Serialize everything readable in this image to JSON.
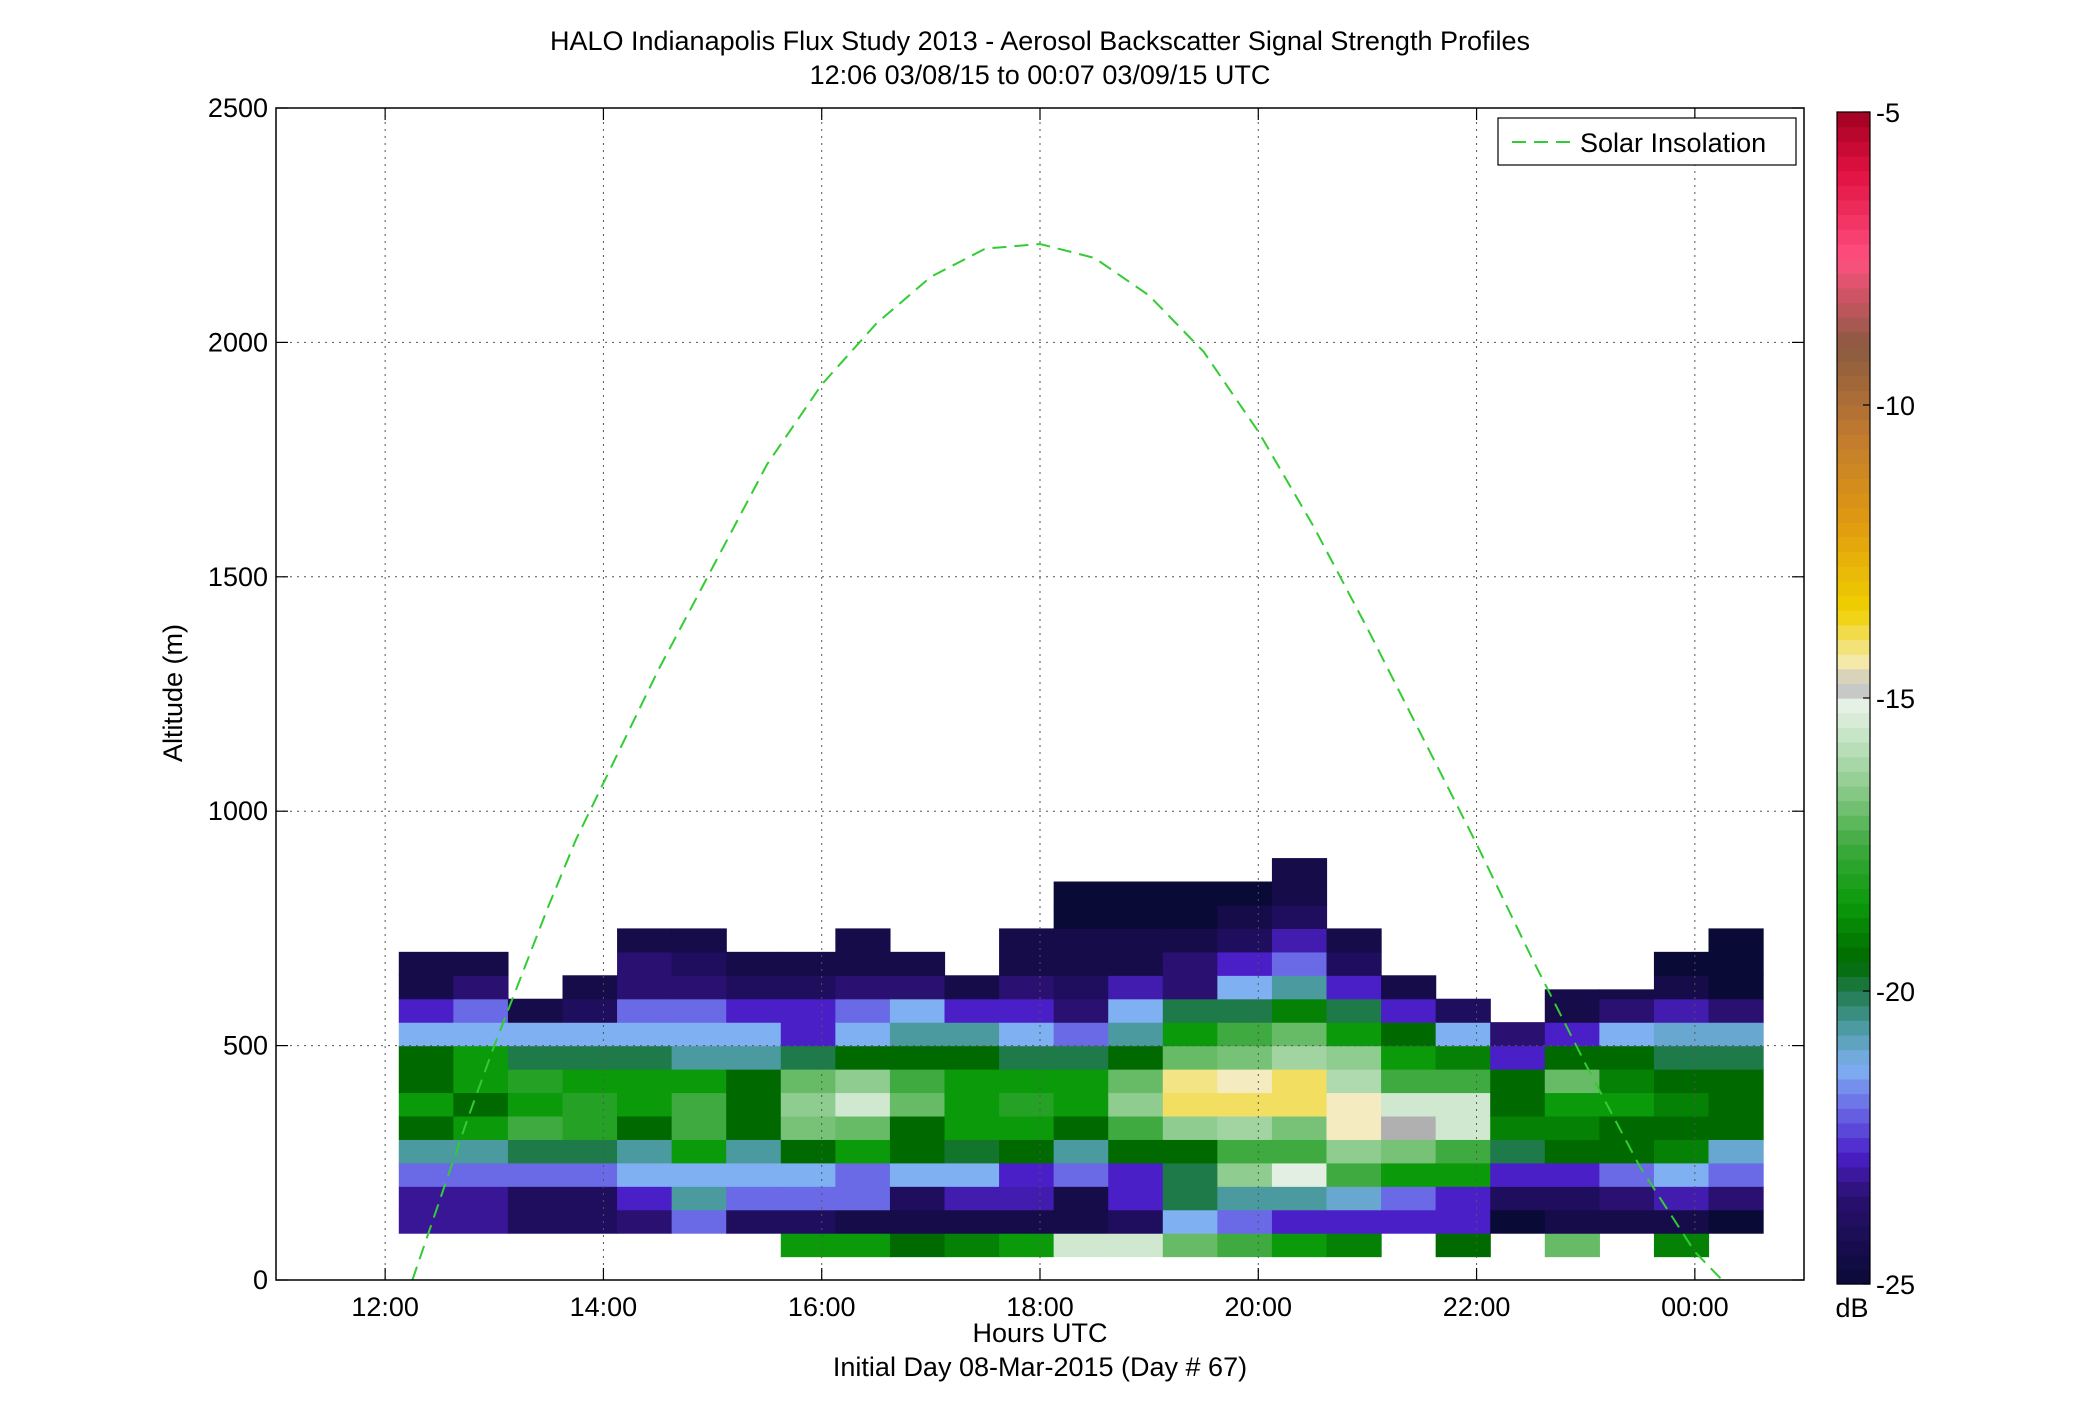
{
  "chart_data": {
    "type": "heatmap",
    "title": "HALO Indianapolis Flux Study 2013 - Aerosol Backscatter Signal Strength Profiles",
    "subtitle": "12:06 03/08/15 to 00:07 03/09/15  UTC",
    "xlabel": "Hours UTC",
    "xlabel2": "Initial Day 08-Mar-2015 (Day # 67)",
    "ylabel": "Altitude (m)",
    "xlim": [
      11.0,
      25.0
    ],
    "ylim": [
      0,
      2500
    ],
    "x_ticks": [
      12,
      14,
      16,
      18,
      20,
      22,
      24
    ],
    "x_tick_labels": [
      "12:00",
      "14:00",
      "16:00",
      "18:00",
      "20:00",
      "22:00",
      "00:00"
    ],
    "y_ticks": [
      0,
      500,
      1000,
      1500,
      2000,
      2500
    ],
    "y_tick_labels": [
      "0",
      "500",
      "1000",
      "1500",
      "2000",
      "2500"
    ],
    "grid": true,
    "legend": {
      "position": "top-right",
      "entries": [
        "Solar Insolation"
      ]
    },
    "colorbar": {
      "unit": "dB",
      "min": -25,
      "max": -5,
      "ticks": [
        -25,
        -20,
        -15,
        -10,
        -5
      ],
      "tick_labels": [
        "-25",
        "-20",
        "-15",
        "-10",
        "-5"
      ],
      "colors": [
        {
          "v": -25.0,
          "c": "#0a0a36"
        },
        {
          "v": -23.5,
          "c": "#2a1070"
        },
        {
          "v": -22.8,
          "c": "#4b1fc8"
        },
        {
          "v": -22.0,
          "c": "#6a6ae6"
        },
        {
          "v": -21.3,
          "c": "#7fb0f2"
        },
        {
          "v": -20.6,
          "c": "#4a9aa0"
        },
        {
          "v": -20.0,
          "c": "#1f7a4a"
        },
        {
          "v": -19.5,
          "c": "#006a00"
        },
        {
          "v": -18.5,
          "c": "#0a9a0a"
        },
        {
          "v": -17.5,
          "c": "#3faa3f"
        },
        {
          "v": -16.5,
          "c": "#8fcc8f"
        },
        {
          "v": -15.5,
          "c": "#cfe8cf"
        },
        {
          "v": -15.0,
          "c": "#eef4ee"
        },
        {
          "v": -14.8,
          "c": "#b0b0b0"
        },
        {
          "v": -14.5,
          "c": "#f4ecc0"
        },
        {
          "v": -13.5,
          "c": "#f0d000"
        },
        {
          "v": -12.0,
          "c": "#e09a10"
        },
        {
          "v": -10.5,
          "c": "#c07a30"
        },
        {
          "v": -9.0,
          "c": "#8a5a40"
        },
        {
          "v": -7.5,
          "c": "#ff5080"
        },
        {
          "v": -6.0,
          "c": "#e01040"
        },
        {
          "v": -5.0,
          "c": "#a00020"
        }
      ]
    },
    "cells": {
      "columns": [
        {
          "x0": 12.125,
          "x1": 12.625,
          "y_top": 720,
          "values": [
            null,
            -23.2,
            -23.2,
            -22.0,
            -20.6,
            -19.5,
            -18.5,
            -19.5,
            -19.5,
            -21.3,
            -22.8,
            -24.5,
            -24.5
          ]
        },
        {
          "x0": 12.625,
          "x1": 13.125,
          "y_top": 720,
          "values": [
            null,
            -23.2,
            -23.2,
            -22.0,
            -20.6,
            -18.5,
            -19.5,
            -18.5,
            -18.5,
            -21.3,
            -22.0,
            -23.5,
            -24.5
          ]
        },
        {
          "x0": 13.125,
          "x1": 13.625,
          "y_top": 670,
          "values": [
            null,
            -24.0,
            -24.0,
            -22.0,
            -20.0,
            -17.5,
            -18.5,
            -18.0,
            -20.0,
            -21.3,
            -24.5
          ]
        },
        {
          "x0": 13.625,
          "x1": 14.125,
          "y_top": 720,
          "values": [
            null,
            -24.0,
            -24.0,
            -22.0,
            -20.0,
            -18.0,
            -18.0,
            -18.5,
            -20.0,
            -21.3,
            -24.0,
            -24.5
          ]
        },
        {
          "x0": 14.125,
          "x1": 14.625,
          "y_top": 770,
          "values": [
            null,
            -23.5,
            -22.8,
            -21.3,
            -20.6,
            -19.5,
            -18.5,
            -18.5,
            -20.0,
            -21.3,
            -22.0,
            -23.5,
            -23.5,
            -24.5
          ]
        },
        {
          "x0": 14.625,
          "x1": 15.125,
          "y_top": 770,
          "values": [
            null,
            -22.0,
            -20.6,
            -21.3,
            -18.5,
            -17.5,
            -17.5,
            -18.5,
            -20.6,
            -21.3,
            -22.0,
            -23.5,
            -24.0,
            -24.5
          ]
        },
        {
          "x0": 15.125,
          "x1": 15.625,
          "y_top": 720,
          "values": [
            null,
            -24.0,
            -22.0,
            -21.3,
            -20.6,
            -19.5,
            -19.5,
            -19.5,
            -20.6,
            -21.3,
            -22.8,
            -24.0,
            -24.5
          ]
        },
        {
          "x0": 15.625,
          "x1": 16.125,
          "y_top": 720,
          "values": [
            -18.5,
            -24.0,
            -22.0,
            -21.3,
            -19.5,
            -16.8,
            -16.5,
            -17.0,
            -20.0,
            -22.8,
            -22.8,
            -24.0,
            -24.5
          ]
        },
        {
          "x0": 16.125,
          "x1": 16.625,
          "y_top": 770,
          "values": [
            -18.5,
            -24.5,
            -22.0,
            -22.0,
            -18.5,
            -17.0,
            -15.5,
            -16.5,
            -19.5,
            -21.3,
            -22.0,
            -23.5,
            -24.5,
            -24.5
          ]
        },
        {
          "x0": 16.625,
          "x1": 17.125,
          "y_top": 770,
          "values": [
            -19.5,
            -24.5,
            -24.0,
            -21.3,
            -19.5,
            -19.5,
            -17.0,
            -17.5,
            -19.5,
            -20.6,
            -21.3,
            -23.5,
            -24.5
          ]
        },
        {
          "x0": 17.125,
          "x1": 17.625,
          "y_top": 720,
          "values": [
            -19.0,
            -24.5,
            -23.0,
            -21.3,
            -19.8,
            -18.5,
            -18.5,
            -18.5,
            -19.5,
            -20.6,
            -22.8,
            -24.5
          ]
        },
        {
          "x0": 17.625,
          "x1": 18.125,
          "y_top": 770,
          "values": [
            -18.5,
            -24.5,
            -23.0,
            -22.8,
            -19.5,
            -18.5,
            -18.0,
            -18.5,
            -20.0,
            -21.3,
            -22.8,
            -23.5,
            -24.5,
            -24.5
          ]
        },
        {
          "x0": 18.125,
          "x1": 18.625,
          "y_top": 870,
          "values": [
            -15.5,
            -24.5,
            -24.5,
            -22.0,
            -20.6,
            -19.5,
            -18.5,
            -18.5,
            -20.0,
            -22.0,
            -23.5,
            -24.0,
            -24.5,
            -24.5,
            -25.0,
            -25.0
          ]
        },
        {
          "x0": 18.625,
          "x1": 19.125,
          "y_top": 920,
          "values": [
            -15.5,
            -24.0,
            -22.8,
            -22.8,
            -19.5,
            -17.5,
            -16.5,
            -17.0,
            -19.5,
            -20.6,
            -21.3,
            -23.0,
            -24.5,
            -24.5,
            -25.0,
            -25.0
          ]
        },
        {
          "x0": 19.125,
          "x1": 19.625,
          "y_top": 870,
          "values": [
            -17.0,
            -21.3,
            -20.0,
            -20.0,
            -19.5,
            -16.5,
            -14.0,
            -14.2,
            -17.0,
            -18.5,
            -20.0,
            -23.5,
            -23.5,
            -24.5,
            -25.0,
            -25.0
          ]
        },
        {
          "x0": 19.625,
          "x1": 20.125,
          "y_top": 920,
          "values": [
            -17.5,
            -22.0,
            -20.6,
            -16.5,
            -17.5,
            -16.2,
            -14.0,
            -14.5,
            -16.8,
            -17.5,
            -20.0,
            -21.3,
            -22.8,
            -24.0,
            -24.5,
            -25.0
          ]
        },
        {
          "x0": 20.125,
          "x1": 20.625,
          "y_top": 970,
          "values": [
            -18.5,
            -22.8,
            -20.6,
            -15.2,
            -17.5,
            -16.8,
            -14.0,
            -14.0,
            -16.2,
            -17.0,
            -19.0,
            -20.6,
            -22.0,
            -23.0,
            -24.0,
            -24.5,
            -24.5
          ]
        },
        {
          "x0": 20.625,
          "x1": 21.125,
          "y_top": 870,
          "values": [
            -19.0,
            -22.8,
            -21.0,
            -17.5,
            -16.5,
            -14.5,
            -14.5,
            -16.0,
            -16.5,
            -18.5,
            -20.0,
            -22.8,
            -24.0,
            -24.5
          ]
        },
        {
          "x0": 21.125,
          "x1": 21.625,
          "y_top": 770,
          "values": [
            null,
            -22.8,
            -22.0,
            -18.5,
            -16.8,
            -14.8,
            -15.5,
            -17.5,
            -18.5,
            -19.5,
            -22.8,
            -24.5
          ]
        },
        {
          "x0": 21.625,
          "x1": 22.125,
          "y_top": 670,
          "values": [
            -19.5,
            -22.8,
            -22.8,
            -18.5,
            -17.5,
            -15.5,
            -15.5,
            -17.5,
            -19.0,
            -21.3,
            -24.0
          ]
        },
        {
          "x0": 22.125,
          "x1": 22.625,
          "y_top": 620,
          "values": [
            null,
            -25.0,
            -24.0,
            -22.8,
            -20.0,
            -19.0,
            -19.5,
            -19.5,
            -22.8,
            -23.5
          ]
        },
        {
          "x0": 22.625,
          "x1": 23.125,
          "y_top": 620,
          "values": [
            -17.0,
            -24.5,
            -24.0,
            -22.8,
            -19.5,
            -19.0,
            -18.5,
            -17.0,
            -19.5,
            -22.8,
            -24.5,
            -24.5
          ]
        },
        {
          "x0": 23.125,
          "x1": 23.625,
          "y_top": 620,
          "values": [
            null,
            -24.5,
            -23.5,
            -22.0,
            -19.5,
            -19.5,
            -18.5,
            -19.0,
            -19.5,
            -21.3,
            -23.5,
            -24.5
          ]
        },
        {
          "x0": 23.625,
          "x1": 24.125,
          "y_top": 720,
          "values": [
            -19.0,
            -24.5,
            -23.0,
            -21.3,
            -19.0,
            -19.5,
            -19.0,
            -19.5,
            -20.0,
            -21.0,
            -23.0,
            -24.5,
            -25.0
          ]
        },
        {
          "x0": 24.125,
          "x1": 24.625,
          "y_top": 820,
          "values": [
            null,
            -25.0,
            -23.5,
            -22.0,
            -21.0,
            -19.5,
            -19.5,
            -19.5,
            -20.0,
            -21.0,
            -23.5,
            -25.0,
            -25.0,
            -25.0
          ]
        }
      ],
      "y_bin_height": 50,
      "y_first_bin": 50
    },
    "series": [
      {
        "name": "Solar Insolation",
        "style": "dashed",
        "color": "#33cc33",
        "x": [
          12.25,
          12.5,
          12.75,
          13.0,
          13.25,
          13.5,
          13.75,
          14.0,
          14.5,
          15.0,
          15.5,
          16.0,
          16.5,
          17.0,
          17.5,
          18.0,
          18.5,
          19.0,
          19.5,
          20.0,
          20.5,
          21.0,
          21.5,
          22.0,
          22.5,
          23.0,
          23.5,
          24.0,
          24.25
        ],
        "y": [
          0,
          170,
          340,
          500,
          650,
          800,
          940,
          1060,
          1300,
          1520,
          1740,
          1910,
          2040,
          2140,
          2200,
          2210,
          2180,
          2100,
          1980,
          1810,
          1610,
          1390,
          1160,
          930,
          690,
          460,
          240,
          60,
          0
        ]
      }
    ]
  }
}
